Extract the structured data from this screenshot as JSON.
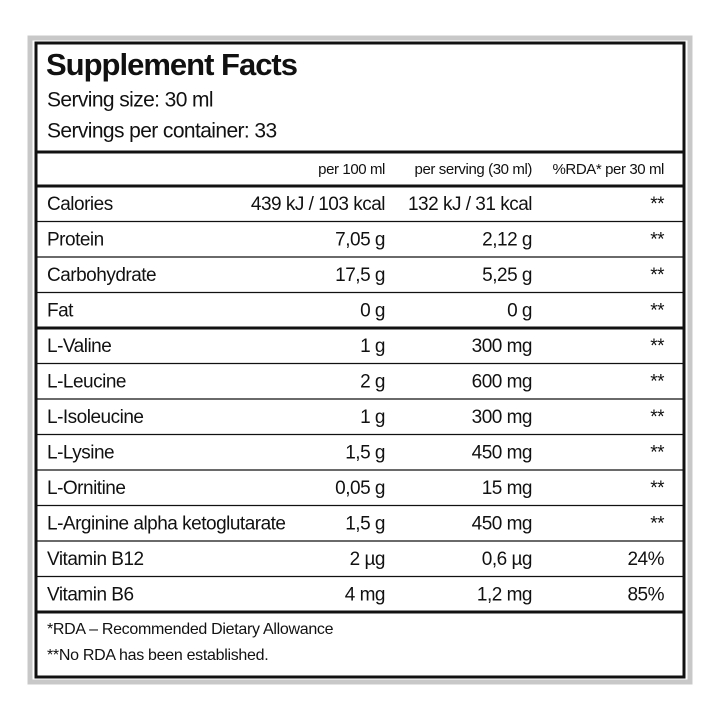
{
  "header": {
    "title": "Supplement Facts",
    "serving_size": "Serving size: 30 ml",
    "servings_per_container": "Servings per container: 33"
  },
  "table": {
    "columns": [
      "per 100 ml",
      "per serving (30 ml)",
      "%RDA* per 30 ml"
    ],
    "rows": [
      [
        "Calories",
        "439 kJ / 103 kcal",
        "132 kJ / 31 kcal",
        "**"
      ],
      [
        "Protein",
        "7,05 g",
        "2,12 g",
        "**"
      ],
      [
        "Carbohydrate",
        "17,5 g",
        "5,25 g",
        "**"
      ],
      [
        "Fat",
        "0 g",
        "0 g",
        "**"
      ],
      [
        "L-Valine",
        "1 g",
        "300 mg",
        "**"
      ],
      [
        "L-Leucine",
        "2 g",
        "600 mg",
        "**"
      ],
      [
        "L-Isoleucine",
        "1 g",
        "300 mg",
        "**"
      ],
      [
        "L-Lysine",
        "1,5 g",
        "450 mg",
        "**"
      ],
      [
        "L-Ornitine",
        "0,05 g",
        "15 mg",
        "**"
      ],
      [
        "L-Arginine alpha ketoglutarate",
        "1,5 g",
        "450 mg",
        "**"
      ],
      [
        "Vitamin B12",
        "2 µg",
        "0,6 µg",
        "24%"
      ],
      [
        "Vitamin B6",
        "4 mg",
        "1,2 mg",
        "85%"
      ]
    ]
  },
  "footnotes": [
    "*RDA – Recommended Dietary Allowance",
    "**No RDA has been established."
  ]
}
